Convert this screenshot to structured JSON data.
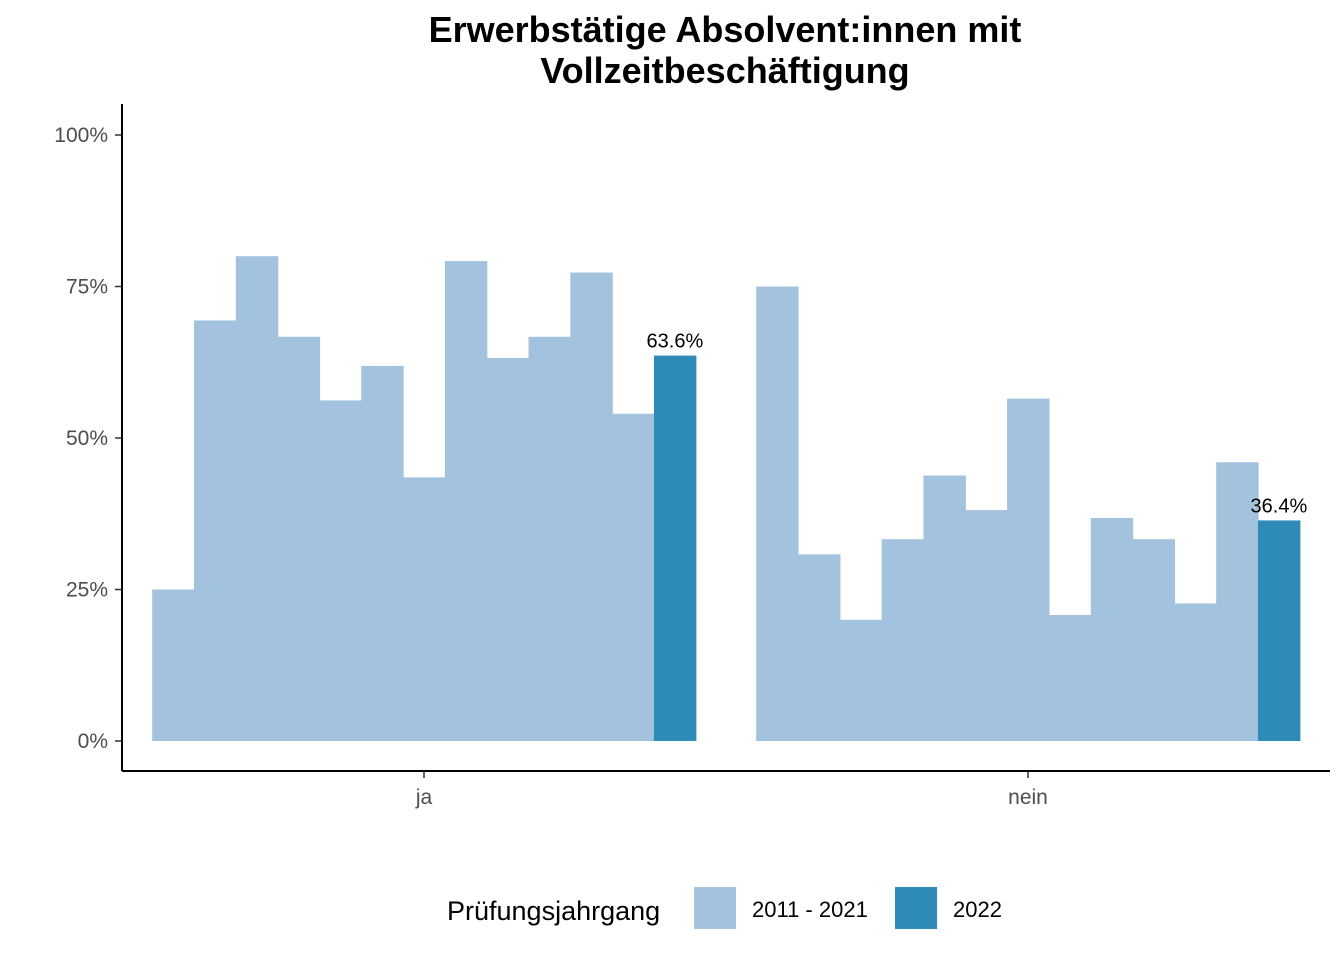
{
  "chart_data": {
    "type": "bar",
    "title_lines": [
      "Erwerbstätige Absolvent:innen mit",
      "Vollzeitbeschäftigung"
    ],
    "xlabel": "",
    "ylabel": "",
    "categories": [
      "ja",
      "nein"
    ],
    "ylim": [
      0,
      1
    ],
    "y_ticks": [
      0,
      0.25,
      0.5,
      0.75,
      1.0
    ],
    "y_tick_labels": [
      "0%",
      "25%",
      "50%",
      "75%",
      "100%"
    ],
    "grid": false,
    "legend_position": "bottom",
    "legend_title": "Prüfungsjahrgang",
    "series": [
      {
        "name": "2011 - 2021",
        "color": "#a2c2de",
        "values_by_category": [
          [
            0.25,
            0.694,
            0.8,
            0.667,
            0.562,
            0.619,
            0.435,
            0.792,
            0.632,
            0.667,
            0.773,
            0.54
          ],
          [
            0.75,
            0.308,
            0.2,
            0.333,
            0.438,
            0.381,
            0.565,
            0.208,
            0.368,
            0.333,
            0.227,
            0.46
          ]
        ]
      },
      {
        "name": "2022",
        "color": "#2e8bb8",
        "values_by_category": [
          [
            0.636
          ],
          [
            0.364
          ]
        ],
        "data_labels": [
          "63.6%",
          "36.4%"
        ]
      }
    ]
  }
}
